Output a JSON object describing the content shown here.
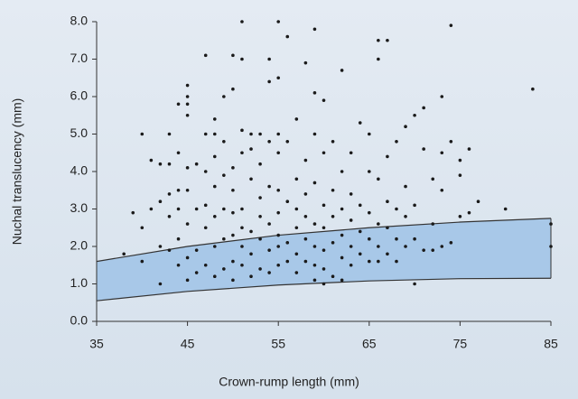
{
  "chart_data": {
    "type": "scatter",
    "xlabel": "Crown-rump length (mm)",
    "ylabel": "Nuchal translucency (mm)",
    "xlim": [
      35,
      85
    ],
    "xticks": [
      35,
      45,
      55,
      65,
      75,
      85
    ],
    "ylim": [
      0,
      8
    ],
    "yticks": [
      {
        "value": 0,
        "label": "0.0"
      },
      {
        "value": 1,
        "label": "1.0"
      },
      {
        "value": 2,
        "label": "2.0"
      },
      {
        "value": 3,
        "label": "3.0"
      },
      {
        "value": 4,
        "label": "4.0"
      },
      {
        "value": 5,
        "label": "5.0"
      },
      {
        "value": 6,
        "label": "6.0"
      },
      {
        "value": 7,
        "label": "7.0"
      },
      {
        "value": 8,
        "label": "8.0"
      }
    ],
    "color": "#1a1a1a",
    "band": {
      "color": "#a8c8e8",
      "x": [
        35,
        45,
        55,
        65,
        75,
        85
      ],
      "lower": [
        0.55,
        0.8,
        0.97,
        1.08,
        1.14,
        1.15
      ],
      "upper": [
        1.6,
        2.0,
        2.3,
        2.5,
        2.65,
        2.75
      ]
    },
    "x": [
      38,
      39,
      40,
      40,
      40,
      41,
      41,
      42,
      42,
      42,
      42,
      43,
      43,
      43,
      43,
      43,
      44,
      44,
      44,
      44,
      44,
      44,
      45,
      45,
      45,
      45,
      45,
      45,
      45,
      45,
      45,
      46,
      46,
      46,
      46,
      47,
      47,
      47,
      47,
      47,
      47,
      48,
      48,
      48,
      48,
      48,
      48,
      48,
      49,
      49,
      49,
      49,
      49,
      49,
      50,
      50,
      50,
      50,
      50,
      50,
      50,
      50,
      51,
      51,
      51,
      51,
      51,
      51,
      51,
      51,
      52,
      52,
      52,
      52,
      52,
      52,
      53,
      53,
      53,
      53,
      53,
      53,
      54,
      54,
      54,
      54,
      54,
      54,
      54,
      55,
      55,
      55,
      55,
      55,
      55,
      55,
      55,
      55,
      56,
      56,
      56,
      56,
      56,
      57,
      57,
      57,
      57,
      57,
      57,
      58,
      58,
      58,
      58,
      58,
      58,
      59,
      59,
      59,
      59,
      59,
      59,
      59,
      59,
      60,
      60,
      60,
      60,
      60,
      60,
      60,
      61,
      61,
      61,
      61,
      61,
      62,
      62,
      62,
      62,
      62,
      62,
      63,
      63,
      63,
      63,
      63,
      64,
      64,
      64,
      64,
      65,
      65,
      65,
      65,
      65,
      66,
      66,
      66,
      66,
      66,
      66,
      67,
      67,
      67,
      67,
      67,
      68,
      68,
      68,
      68,
      69,
      69,
      69,
      69,
      70,
      70,
      70,
      70,
      71,
      71,
      71,
      72,
      72,
      72,
      73,
      73,
      73,
      73,
      74,
      74,
      74,
      75,
      75,
      75,
      76,
      76,
      77,
      80,
      83,
      85,
      85
    ],
    "values": [
      1.8,
      2.9,
      5.0,
      2.5,
      1.6,
      3.0,
      4.3,
      1.0,
      2.0,
      3.2,
      4.2,
      1.9,
      2.8,
      3.4,
      4.2,
      5.0,
      1.5,
      3.0,
      3.5,
      4.5,
      5.8,
      2.2,
      1.1,
      1.7,
      2.6,
      3.5,
      4.1,
      5.5,
      6.0,
      6.3,
      5.8,
      1.3,
      1.9,
      3.0,
      4.2,
      1.5,
      2.5,
      3.1,
      4.0,
      5.0,
      7.1,
      1.2,
      2.0,
      2.8,
      3.6,
      4.4,
      5.0,
      5.4,
      1.4,
      2.2,
      3.0,
      3.9,
      4.8,
      6.0,
      1.1,
      1.6,
      2.3,
      2.9,
      3.5,
      4.1,
      6.2,
      7.1,
      1.5,
      2.0,
      2.5,
      3.0,
      4.5,
      5.1,
      7.0,
      8.0,
      1.2,
      1.8,
      2.4,
      3.8,
      4.6,
      5.0,
      1.4,
      2.2,
      2.8,
      3.3,
      4.2,
      5.0,
      1.3,
      1.9,
      2.6,
      3.6,
      4.8,
      6.4,
      7.0,
      1.5,
      2.0,
      2.3,
      2.9,
      3.5,
      4.5,
      5.0,
      6.5,
      8.0,
      1.6,
      2.1,
      3.2,
      4.8,
      7.6,
      1.3,
      1.8,
      2.5,
      3.0,
      3.8,
      5.4,
      1.6,
      2.2,
      2.8,
      3.4,
      4.3,
      6.9,
      1.1,
      1.5,
      2.0,
      2.6,
      3.7,
      5.0,
      6.1,
      7.8,
      1.0,
      1.4,
      1.9,
      2.5,
      3.1,
      4.5,
      5.9,
      1.2,
      2.1,
      2.8,
      3.5,
      4.8,
      1.1,
      1.7,
      2.3,
      3.0,
      4.0,
      6.7,
      1.5,
      2.0,
      2.7,
      3.4,
      4.5,
      1.8,
      2.4,
      3.1,
      5.3,
      1.6,
      2.2,
      2.9,
      4.0,
      5.0,
      1.6,
      2.0,
      2.6,
      3.8,
      7.0,
      7.5,
      1.8,
      2.5,
      3.2,
      4.4,
      7.5,
      1.6,
      2.2,
      3.0,
      4.8,
      2.0,
      2.8,
      3.6,
      5.2,
      1.0,
      2.2,
      3.1,
      5.5,
      1.9,
      4.6,
      5.7,
      2.6,
      3.8,
      1.9,
      2.0,
      3.5,
      4.5,
      6.0,
      2.1,
      4.8,
      7.9,
      2.8,
      3.9,
      4.3,
      2.9,
      4.6,
      3.2,
      3.0,
      6.2,
      2.6,
      2.0
    ]
  }
}
